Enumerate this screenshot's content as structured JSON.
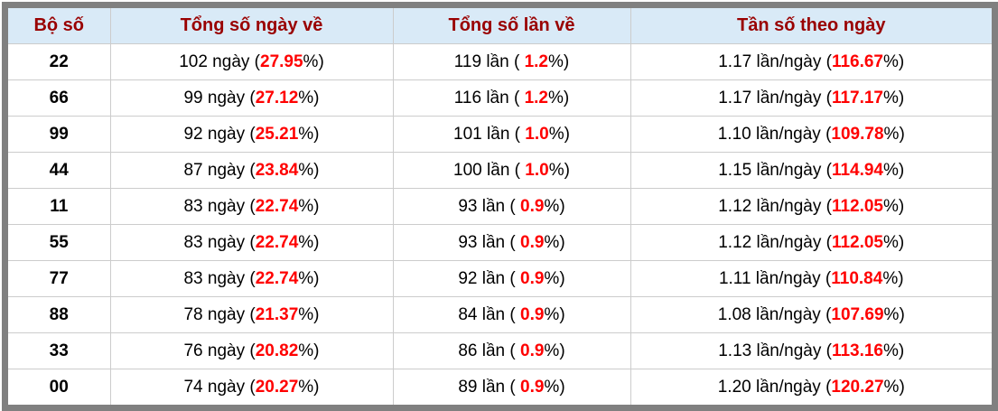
{
  "table": {
    "headers": [
      "Bộ số",
      "Tổng số ngày về",
      "Tổng số lần về",
      "Tần số theo ngày"
    ],
    "rows": [
      {
        "pair": "22",
        "days": {
          "pre": "102 ngày (",
          "val": "27.95",
          "suf": "%)"
        },
        "times": {
          "pre": "119 lần ( ",
          "val": "1.2",
          "suf": "%)"
        },
        "freq": {
          "pre": "1.17 lần/ngày (",
          "val": "116.67",
          "suf": "%)"
        }
      },
      {
        "pair": "66",
        "days": {
          "pre": "99 ngày (",
          "val": "27.12",
          "suf": "%)"
        },
        "times": {
          "pre": "116 lần ( ",
          "val": "1.2",
          "suf": "%)"
        },
        "freq": {
          "pre": "1.17 lần/ngày (",
          "val": "117.17",
          "suf": "%)"
        }
      },
      {
        "pair": "99",
        "days": {
          "pre": "92 ngày (",
          "val": "25.21",
          "suf": "%)"
        },
        "times": {
          "pre": "101 lần ( ",
          "val": "1.0",
          "suf": "%)"
        },
        "freq": {
          "pre": "1.10 lần/ngày (",
          "val": "109.78",
          "suf": "%)"
        }
      },
      {
        "pair": "44",
        "days": {
          "pre": "87 ngày (",
          "val": "23.84",
          "suf": "%)"
        },
        "times": {
          "pre": "100 lần ( ",
          "val": "1.0",
          "suf": "%)"
        },
        "freq": {
          "pre": "1.15 lần/ngày (",
          "val": "114.94",
          "suf": "%)"
        }
      },
      {
        "pair": "11",
        "days": {
          "pre": "83 ngày (",
          "val": "22.74",
          "suf": "%)"
        },
        "times": {
          "pre": "93 lần ( ",
          "val": "0.9",
          "suf": "%)"
        },
        "freq": {
          "pre": "1.12 lần/ngày (",
          "val": "112.05",
          "suf": "%)"
        }
      },
      {
        "pair": "55",
        "days": {
          "pre": "83 ngày (",
          "val": "22.74",
          "suf": "%)"
        },
        "times": {
          "pre": "93 lần ( ",
          "val": "0.9",
          "suf": "%)"
        },
        "freq": {
          "pre": "1.12 lần/ngày (",
          "val": "112.05",
          "suf": "%)"
        }
      },
      {
        "pair": "77",
        "days": {
          "pre": "83 ngày (",
          "val": "22.74",
          "suf": "%)"
        },
        "times": {
          "pre": "92 lần ( ",
          "val": "0.9",
          "suf": "%)"
        },
        "freq": {
          "pre": "1.11 lần/ngày (",
          "val": "110.84",
          "suf": "%)"
        }
      },
      {
        "pair": "88",
        "days": {
          "pre": "78 ngày (",
          "val": "21.37",
          "suf": "%)"
        },
        "times": {
          "pre": "84 lần ( ",
          "val": "0.9",
          "suf": "%)"
        },
        "freq": {
          "pre": "1.08 lần/ngày (",
          "val": "107.69",
          "suf": "%)"
        }
      },
      {
        "pair": "33",
        "days": {
          "pre": "76 ngày (",
          "val": "20.82",
          "suf": "%)"
        },
        "times": {
          "pre": "86 lần ( ",
          "val": "0.9",
          "suf": "%)"
        },
        "freq": {
          "pre": "1.13 lần/ngày (",
          "val": "113.16",
          "suf": "%)"
        }
      },
      {
        "pair": "00",
        "days": {
          "pre": "74 ngày (",
          "val": "20.27",
          "suf": "%)"
        },
        "times": {
          "pre": "89 lần ( ",
          "val": "0.9",
          "suf": "%)"
        },
        "freq": {
          "pre": "1.20 lần/ngày (",
          "val": "120.27",
          "suf": "%)"
        }
      }
    ]
  },
  "colors": {
    "frame_border": "#808080",
    "header_bg": "#d9eaf7",
    "header_text": "#990000",
    "highlight_red": "#ff0000",
    "grid_line": "#cccccc",
    "body_text": "#000000"
  }
}
